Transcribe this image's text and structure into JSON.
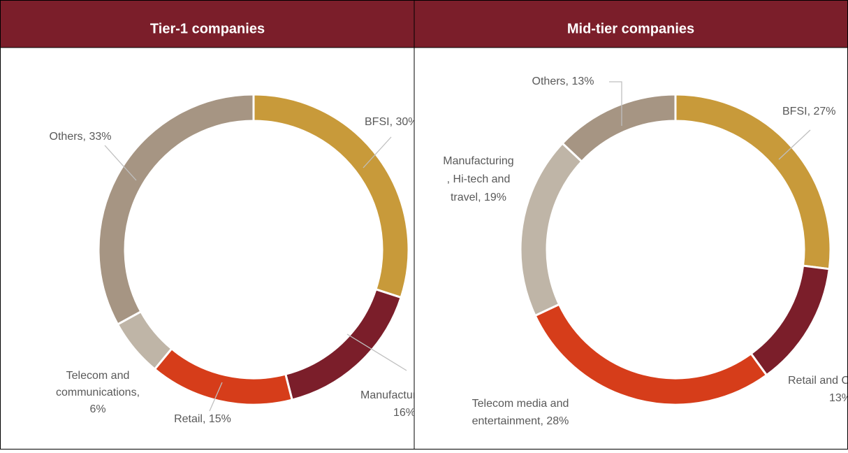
{
  "chart_data": [
    {
      "type": "donut",
      "title": "Tier-1 companies",
      "categories": [
        "BFSI",
        "Manufacturing",
        "Retail",
        "Telecom and communications",
        "Others"
      ],
      "values": [
        30,
        16,
        15,
        6,
        33
      ],
      "value_labels": [
        [
          "BFSI, 30%"
        ],
        [
          "Manufacturing,",
          "16%"
        ],
        [
          "Retail, 15%"
        ],
        [
          "Telecom and",
          "communications,",
          "6%"
        ],
        [
          "Others, 33%"
        ]
      ],
      "colors": [
        "#c89a3a",
        "#7b1e2a",
        "#d63d1a",
        "#bfb5a7",
        "#a69583"
      ]
    },
    {
      "type": "donut",
      "title": "Mid-tier companies",
      "categories": [
        "BFSI",
        "Retail and CPG",
        "Telecom media and entertainment",
        "Manufacturing, Hi-tech and travel",
        "Others"
      ],
      "values": [
        27,
        13,
        28,
        19,
        13
      ],
      "value_labels": [
        [
          "BFSI, 27%"
        ],
        [
          "Retail and CPG,",
          "13%"
        ],
        [
          "Telecom media and",
          "entertainment, 28%"
        ],
        [
          "Manufacturing",
          ", Hi-tech and",
          "travel, 19%"
        ],
        [
          "Others, 13%"
        ]
      ],
      "colors": [
        "#c89a3a",
        "#7b1e2a",
        "#d63d1a",
        "#bfb5a7",
        "#a69583"
      ]
    }
  ]
}
